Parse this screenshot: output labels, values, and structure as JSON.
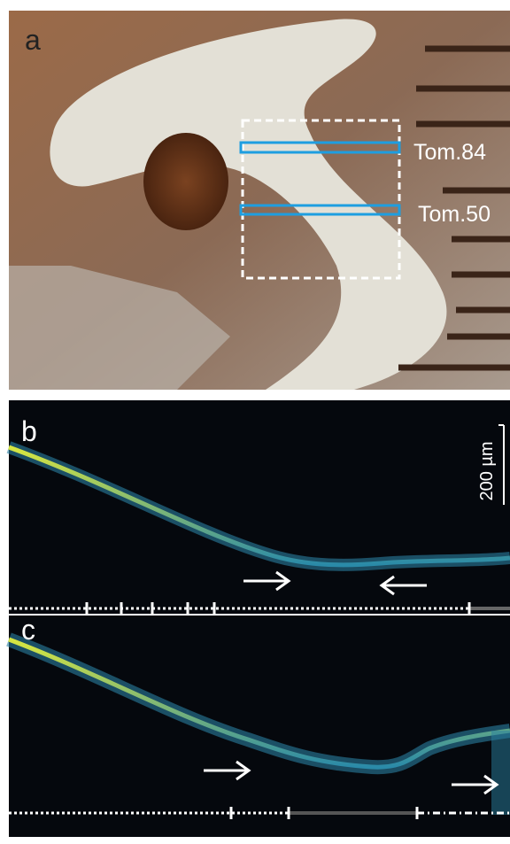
{
  "panels": [
    {
      "label": "a",
      "annotations": [
        "Tom.84",
        "Tom.50"
      ]
    },
    {
      "label": "b",
      "scale_bar": "200 µm"
    },
    {
      "label": "c"
    }
  ]
}
